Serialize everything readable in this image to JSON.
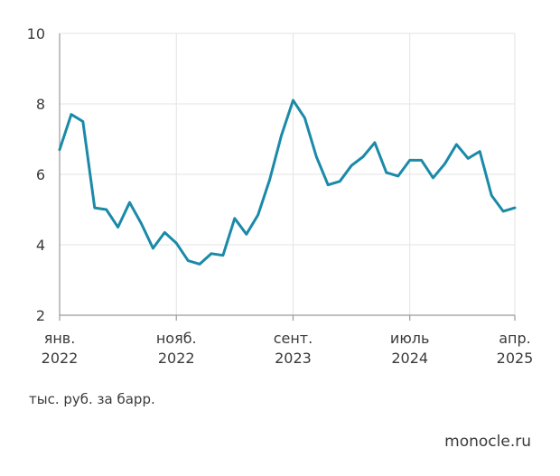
{
  "chart_data": {
    "type": "line",
    "title": "",
    "xlabel": "",
    "ylabel": "тыс. руб. за барр.",
    "ylim": [
      2,
      10
    ],
    "yticks": [
      2,
      4,
      6,
      8,
      10
    ],
    "grid": true,
    "xticks": [
      {
        "month": "2022-01",
        "line1": "янв.",
        "line2": "2022"
      },
      {
        "month": "2022-11",
        "line1": "нояб.",
        "line2": "2022"
      },
      {
        "month": "2023-09",
        "line1": "сент.",
        "line2": "2023"
      },
      {
        "month": "2024-07",
        "line1": "июль",
        "line2": "2024"
      },
      {
        "month": "2025-04",
        "line1": "апр.",
        "line2": "2025"
      }
    ],
    "series": [
      {
        "color": "#1a8aa8",
        "x": [
          "2022-01",
          "2022-02",
          "2022-03",
          "2022-04",
          "2022-05",
          "2022-06",
          "2022-07",
          "2022-08",
          "2022-09",
          "2022-10",
          "2022-11",
          "2022-12",
          "2023-01",
          "2023-02",
          "2023-03",
          "2023-04",
          "2023-05",
          "2023-06",
          "2023-07",
          "2023-08",
          "2023-09",
          "2023-10",
          "2023-11",
          "2023-12",
          "2024-01",
          "2024-02",
          "2024-03",
          "2024-04",
          "2024-05",
          "2024-06",
          "2024-07",
          "2024-08",
          "2024-09",
          "2024-10",
          "2024-11",
          "2024-12",
          "2025-01",
          "2025-02",
          "2025-03",
          "2025-04"
        ],
        "values": [
          6.7,
          7.7,
          7.5,
          5.05,
          5.0,
          4.5,
          5.2,
          4.6,
          3.9,
          4.35,
          4.05,
          3.55,
          3.45,
          3.75,
          3.7,
          4.75,
          4.3,
          4.85,
          5.85,
          7.1,
          8.1,
          7.6,
          6.5,
          5.7,
          5.8,
          6.25,
          6.5,
          6.9,
          6.05,
          5.95,
          6.4,
          6.4,
          5.9,
          6.3,
          6.85,
          6.45,
          6.65,
          5.4,
          4.95,
          5.05
        ]
      }
    ]
  },
  "footer": {
    "unit_label": "тыс. руб. за барр.",
    "brand": "monocle.ru"
  }
}
